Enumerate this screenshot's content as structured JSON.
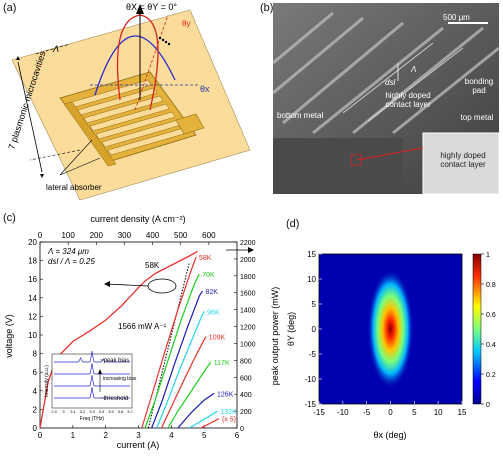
{
  "panel_a": {
    "label": "(a)",
    "angle_title": "θX = θY = 0°",
    "theta_x": "θx",
    "theta_y": "θy",
    "period": "Λ",
    "microcavities": "7 plasmonic microcavities",
    "absorber": "lateral absorber"
  },
  "panel_b": {
    "label": "(b)",
    "scale_bar": "500 μm",
    "lambda": "Λ",
    "dsl": "dsl",
    "contact_layer": "highly doped contact layer",
    "bonding_pad": "bonding pad",
    "bottom_metal": "bottom metal",
    "top_metal": "top metal",
    "inset_contact": "highly doped contact layer"
  },
  "panel_c": {
    "label": "(c)",
    "top_axis_label": "current density (A cm⁻²)",
    "bottom_axis_label": "current (A)",
    "left_axis_label": "voltage (V)",
    "right_axis_label": "peak output power (mW)",
    "param_lambda": "Λ = 324 μm",
    "param_ratio": "dsl / Λ = 0.25",
    "slope_efficiency": "1566 mW A⁻¹",
    "voltage_temp_label": "58K",
    "inset": {
      "y_label": "Intensity (a.u.)",
      "x_label": "Freq (THz)",
      "peak_bias": "~peak bias",
      "increasing_bias": "increasing bias",
      "threshold": "~threshold",
      "x_ticks": [
        "2.9",
        "3",
        "3.1",
        "3.2",
        "3.3",
        "3.4",
        "3.5",
        "3.6",
        "3.7"
      ]
    }
  },
  "panel_d": {
    "label": "(d)",
    "x_label": "θx (deg)",
    "y_label": "θY (deg)",
    "colorbar_ticks": [
      "0",
      "0.2",
      "0.4",
      "0.6",
      "0.8",
      "1"
    ]
  },
  "chart_data": [
    {
      "type": "line",
      "panel": "c",
      "title": "",
      "xlabel": "current (A)",
      "x2label": "current density (A cm⁻²)",
      "ylabel": "voltage (V)",
      "y2label": "peak output power (mW)",
      "xlim": [
        0,
        6
      ],
      "x2lim": [
        0,
        700
      ],
      "ylim": [
        0,
        20
      ],
      "y2lim": [
        0,
        2200
      ],
      "x_ticks": [
        "0",
        "1",
        "2",
        "3",
        "4",
        "5",
        "6"
      ],
      "x2_ticks": [
        "0",
        "100",
        "200",
        "300",
        "400",
        "500",
        "600"
      ],
      "y_ticks": [
        "0",
        "2",
        "4",
        "6",
        "8",
        "10",
        "12",
        "14",
        "16",
        "18",
        "20"
      ],
      "y2_ticks": [
        "0",
        "200",
        "400",
        "600",
        "800",
        "1000",
        "1200",
        "1400",
        "1600",
        "1800",
        "2000",
        "2200"
      ],
      "voltage_series": {
        "name": "58K",
        "color": "#e8322d",
        "x": [
          0,
          0.25,
          0.5,
          1.0,
          1.5,
          2.0,
          2.5,
          3.0,
          3.2,
          3.5,
          4.0,
          4.5,
          4.8
        ],
        "y": [
          0,
          5.0,
          7.5,
          9.3,
          10.4,
          11.6,
          13.2,
          15.1,
          15.8,
          16.6,
          17.5,
          18.4,
          19.0
        ]
      },
      "power_series": [
        {
          "name": "58K",
          "color": "#e8322d",
          "x": [
            3.1,
            3.4,
            3.8,
            4.2,
            4.6,
            4.75
          ],
          "y": [
            0,
            380,
            900,
            1400,
            1860,
            2020
          ]
        },
        {
          "name": "70K",
          "color": "#1dd01d",
          "x": [
            3.2,
            3.5,
            3.9,
            4.3,
            4.7,
            4.85
          ],
          "y": [
            0,
            320,
            800,
            1280,
            1700,
            1820
          ]
        },
        {
          "name": "82K",
          "color": "#1a1ab8",
          "x": [
            3.4,
            3.7,
            4.1,
            4.5,
            4.85,
            4.95
          ],
          "y": [
            0,
            300,
            760,
            1200,
            1560,
            1620
          ]
        },
        {
          "name": "96K",
          "color": "#22d6e6",
          "x": [
            3.55,
            3.85,
            4.2,
            4.6,
            4.9,
            5.0
          ],
          "y": [
            0,
            280,
            640,
            1020,
            1300,
            1380
          ]
        },
        {
          "name": "109K",
          "color": "#e8322d",
          "x": [
            3.7,
            4.0,
            4.4,
            4.75,
            5.05
          ],
          "y": [
            0,
            250,
            580,
            860,
            1080
          ]
        },
        {
          "name": "117K",
          "color": "#1dd01d",
          "x": [
            3.9,
            4.2,
            4.6,
            4.95,
            5.2
          ],
          "y": [
            0,
            200,
            430,
            640,
            780
          ]
        },
        {
          "name": "126K",
          "color": "#1a1ab8",
          "x": [
            4.2,
            4.6,
            5.0,
            5.3
          ],
          "y": [
            0,
            180,
            330,
            410
          ]
        },
        {
          "name": "132K",
          "color": "#22d6e6",
          "x": [
            4.55,
            4.9,
            5.2,
            5.4
          ],
          "y": [
            0,
            80,
            150,
            200
          ]
        },
        {
          "name": "(x 5)",
          "color": "#e8322d",
          "x": [
            4.9,
            5.1,
            5.3,
            5.45
          ],
          "y": [
            0,
            40,
            80,
            110
          ]
        }
      ],
      "slope_line": {
        "x": [
          3.3,
          4.55
        ],
        "y": [
          0,
          1960
        ]
      }
    },
    {
      "type": "heatmap",
      "panel": "d",
      "xlabel": "θx (deg)",
      "ylabel": "θY (deg)",
      "xlim": [
        -15,
        15
      ],
      "ylim": [
        -15,
        15
      ],
      "x_ticks": [
        "-15",
        "-10",
        "-5",
        "0",
        "5",
        "10",
        "15"
      ],
      "y_ticks": [
        "15",
        "10",
        "5",
        "0",
        "-5",
        "-10",
        "-15"
      ],
      "colorbar_range": [
        0,
        1
      ],
      "peak": {
        "x": 0,
        "y": 0,
        "value": 1.0
      },
      "spread_x_deg": 2.2,
      "spread_y_deg": 5.0,
      "colormap": "jet"
    }
  ]
}
